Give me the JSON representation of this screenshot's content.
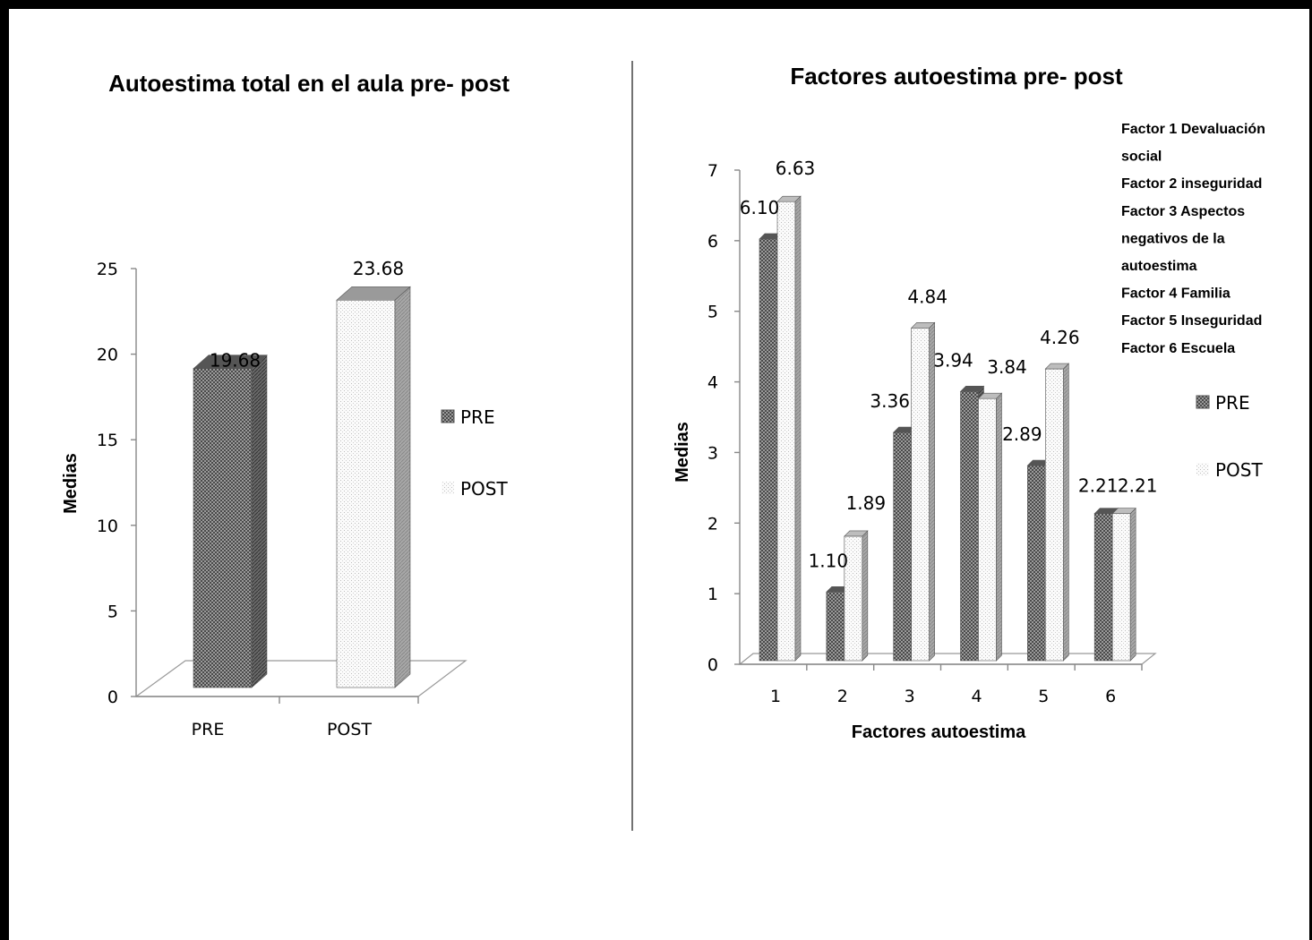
{
  "colors": {
    "pre": "#666666",
    "post": "#f2f2f2",
    "axis": "#888888",
    "frame": "#000000"
  },
  "chart_data": [
    {
      "type": "bar",
      "title": "Autoestima total en el aula pre- post",
      "categories": [
        "PRE",
        "POST"
      ],
      "series": [
        {
          "name": "PRE",
          "values": [
            19.68,
            null
          ]
        },
        {
          "name": "POST",
          "values": [
            null,
            23.68
          ]
        }
      ],
      "data_labels": [
        "19.68",
        "23.68"
      ],
      "xlabel": "",
      "ylabel": "Medias",
      "ylim": [
        0,
        25
      ],
      "yticks": [
        "0",
        "5",
        "10",
        "15",
        "20",
        "25"
      ],
      "legend": [
        "PRE",
        "POST"
      ],
      "legend_position": "right",
      "grid": false,
      "style": "3d"
    },
    {
      "type": "bar",
      "title": "Factores autoestima pre- post",
      "categories": [
        "1",
        "2",
        "3",
        "4",
        "5",
        "6"
      ],
      "series": [
        {
          "name": "PRE",
          "values": [
            6.1,
            1.1,
            3.36,
            3.94,
            2.89,
            2.21
          ],
          "labels": [
            "6.10",
            "1.10",
            "3.36",
            "3.94",
            "2.89",
            "2.21"
          ]
        },
        {
          "name": "POST",
          "values": [
            6.63,
            1.89,
            4.84,
            3.84,
            4.26,
            2.21
          ],
          "labels": [
            "6.63",
            "1.89",
            "4.84",
            "3.84",
            "4.26",
            "2.21"
          ]
        }
      ],
      "xlabel": "Factores autoestima",
      "ylabel": "Medias",
      "ylim": [
        0,
        7
      ],
      "yticks": [
        "0",
        "1",
        "2",
        "3",
        "4",
        "5",
        "6",
        "7"
      ],
      "legend": [
        "PRE",
        "POST"
      ],
      "legend_position": "right",
      "grid": false,
      "style": "3d",
      "annotations": [
        "Factor 1 Devaluación",
        "social",
        "Factor 2 inseguridad",
        "Factor 3 Aspectos",
        "negativos  de la",
        "autoestima",
        "Factor 4 Familia",
        "Factor 5 Inseguridad",
        "Factor 6 Escuela"
      ]
    }
  ]
}
